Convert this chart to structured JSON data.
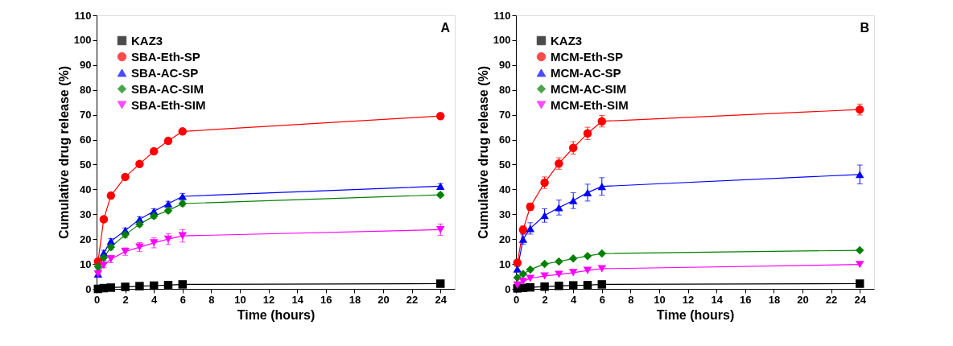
{
  "chart_data": [
    {
      "type": "line",
      "annotations": [
        "A"
      ],
      "xlabel": "Time (hours)",
      "ylabel": "Cumulative drug release (%)",
      "x": [
        0.1,
        0.5,
        1,
        2,
        3,
        4,
        5,
        6,
        24
      ],
      "xlim": [
        0,
        25
      ],
      "xticks": [
        0,
        2,
        4,
        6,
        8,
        10,
        12,
        14,
        16,
        18,
        20,
        22,
        24
      ],
      "ylim": [
        0,
        110
      ],
      "yticks": [
        0,
        10,
        20,
        30,
        40,
        50,
        60,
        70,
        80,
        90,
        100,
        110
      ],
      "grid": false,
      "legend": "top left",
      "line_style": "solid",
      "series": [
        {
          "name": "KAZ3",
          "color": "#000000",
          "marker": "square",
          "values": [
            0,
            0.3,
            0.5,
            0.8,
            1.1,
            1.3,
            1.5,
            1.8,
            2.1
          ]
        },
        {
          "name": "SBA-Eth-SP",
          "color": "#ff0000",
          "marker": "circle",
          "values": [
            11,
            28,
            37.5,
            45,
            50.2,
            55.3,
            59.5,
            63.3,
            69.5
          ]
        },
        {
          "name": "SBA-AC-SP",
          "color": "#0000ff",
          "marker": "triangle",
          "values": [
            6,
            14.5,
            19.2,
            23.5,
            28,
            31.2,
            34.2,
            37.2,
            41.3
          ],
          "errors": [
            1,
            1,
            1,
            1,
            1,
            1,
            1,
            1.2,
            1
          ]
        },
        {
          "name": "SBA-AC-SIM",
          "color": "#008000",
          "marker": "diamond",
          "values": [
            9,
            12.5,
            16.8,
            21.8,
            26,
            29.3,
            31.5,
            34.3,
            37.8
          ],
          "errors": [
            1,
            1,
            1.2,
            1.3,
            1,
            1,
            1,
            1,
            0.8
          ]
        },
        {
          "name": "SBA-Eth-SIM",
          "color": "#ff00ff",
          "marker": "triangle-down",
          "values": [
            6,
            9.5,
            12,
            15,
            16.8,
            18.5,
            20,
            21.3,
            23.8
          ],
          "errors": [
            1,
            1,
            1.5,
            1.5,
            1.8,
            2,
            2.2,
            2.5,
            2.3
          ]
        }
      ]
    },
    {
      "type": "line",
      "annotations": [
        "B"
      ],
      "xlabel": "Time (hours)",
      "ylabel": "Cumulative drug release (%)",
      "x": [
        0.1,
        0.5,
        1,
        2,
        3,
        4,
        5,
        6,
        24
      ],
      "xlim": [
        0,
        25
      ],
      "xticks": [
        0,
        2,
        4,
        6,
        8,
        10,
        12,
        14,
        16,
        18,
        20,
        22,
        24
      ],
      "ylim": [
        0,
        110
      ],
      "yticks": [
        0,
        10,
        20,
        30,
        40,
        50,
        60,
        70,
        80,
        90,
        100,
        110
      ],
      "grid": false,
      "legend": "top left",
      "line_style": "solid",
      "series": [
        {
          "name": "KAZ3",
          "color": "#000000",
          "marker": "square",
          "values": [
            0.2,
            0.4,
            0.6,
            0.9,
            1.2,
            1.4,
            1.5,
            1.8,
            2.1
          ]
        },
        {
          "name": "MCM-Eth-SP",
          "color": "#ff0000",
          "marker": "circle",
          "values": [
            10.5,
            23.8,
            33,
            42.7,
            50.4,
            56.7,
            62.5,
            67.4,
            72.1
          ],
          "errors": [
            1,
            1.5,
            1.5,
            2.3,
            2.3,
            2.5,
            2.5,
            2.3,
            2.2
          ]
        },
        {
          "name": "MCM-AC-SP",
          "color": "#0000ff",
          "marker": "triangle",
          "values": [
            8,
            20,
            24.3,
            29.5,
            32.7,
            35.5,
            38.7,
            41.2,
            46
          ],
          "errors": [
            1,
            2,
            2.3,
            2.7,
            3,
            3.2,
            3.4,
            3.5,
            3.8
          ]
        },
        {
          "name": "MCM-AC-SIM",
          "color": "#008000",
          "marker": "diamond",
          "values": [
            4.5,
            6,
            7.8,
            10,
            11,
            12.2,
            13.2,
            14.2,
            15.5
          ]
        },
        {
          "name": "MCM-Eth-SIM",
          "color": "#ff00ff",
          "marker": "triangle-down",
          "values": [
            1.5,
            3,
            4.2,
            5.2,
            5.8,
            6.5,
            7.4,
            8.1,
            9.8
          ]
        }
      ]
    }
  ]
}
